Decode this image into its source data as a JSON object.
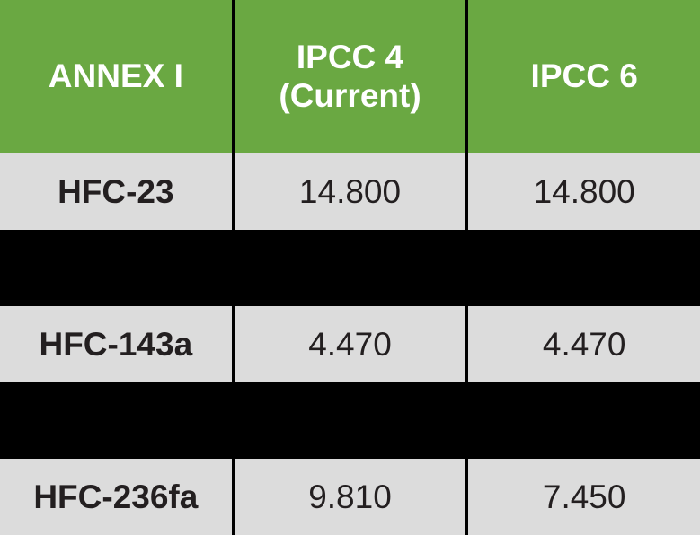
{
  "table": {
    "type": "table",
    "background_color": "#000000",
    "header_bg": "#6aa842",
    "header_fg": "#ffffff",
    "data_bg": "#dcdcdc",
    "data_fg": "#231f20",
    "border_color": "#000000",
    "header_fontsize": 37,
    "data_fontsize": 37,
    "columns": [
      {
        "label": "ANNEX I"
      },
      {
        "label": "IPCC 4 (Current)"
      },
      {
        "label": "IPCC 6"
      }
    ],
    "rows": [
      {
        "visible": true,
        "name": "HFC-23",
        "ipcc4": "14.800",
        "ipcc6": "14.800"
      },
      {
        "visible": false,
        "name": "",
        "ipcc4": "",
        "ipcc6": ""
      },
      {
        "visible": true,
        "name": "HFC-143a",
        "ipcc4": "4.470",
        "ipcc6": "4.470"
      },
      {
        "visible": false,
        "name": "",
        "ipcc4": "",
        "ipcc6": ""
      },
      {
        "visible": true,
        "name": "HFC-236fa",
        "ipcc4": "9.810",
        "ipcc6": "7.450"
      }
    ]
  }
}
